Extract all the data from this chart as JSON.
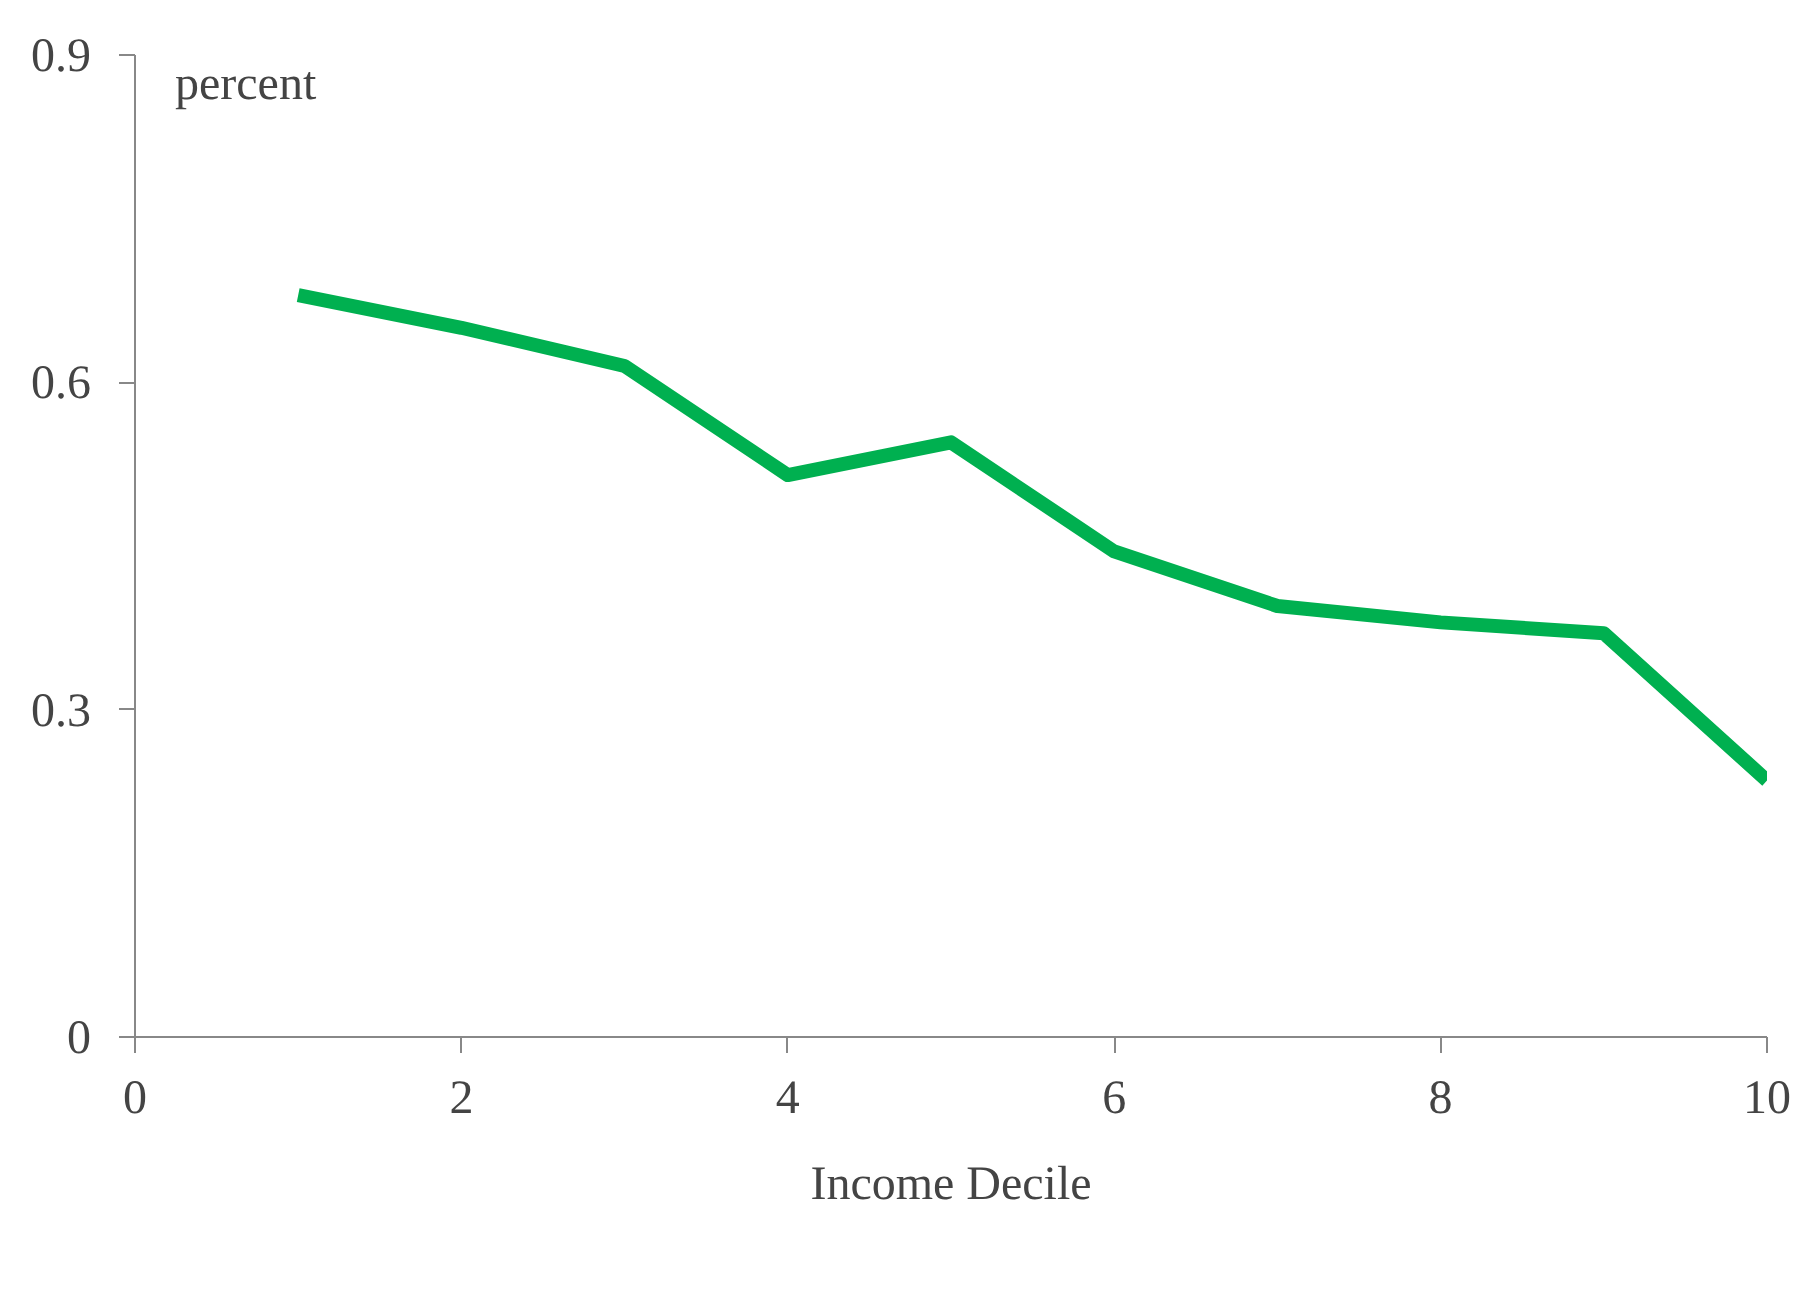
{
  "chart_data": {
    "type": "line",
    "xlabel": "Income Decile",
    "ylabel": "percent",
    "x": [
      1,
      2,
      3,
      4,
      5,
      6,
      7,
      8,
      9,
      10
    ],
    "series": [
      {
        "color": "#00b050",
        "values": [
          0.68,
          0.65,
          0.615,
          0.515,
          0.545,
          0.445,
          0.395,
          0.38,
          0.37,
          0.235
        ]
      }
    ],
    "xlim": [
      0,
      10
    ],
    "ylim": [
      0,
      0.9
    ],
    "xticks": [
      0,
      2,
      4,
      6,
      8,
      10
    ],
    "yticks": [
      0,
      0.3,
      0.6,
      0.9
    ],
    "grid": false,
    "marker": "none",
    "line_style": "solid"
  }
}
